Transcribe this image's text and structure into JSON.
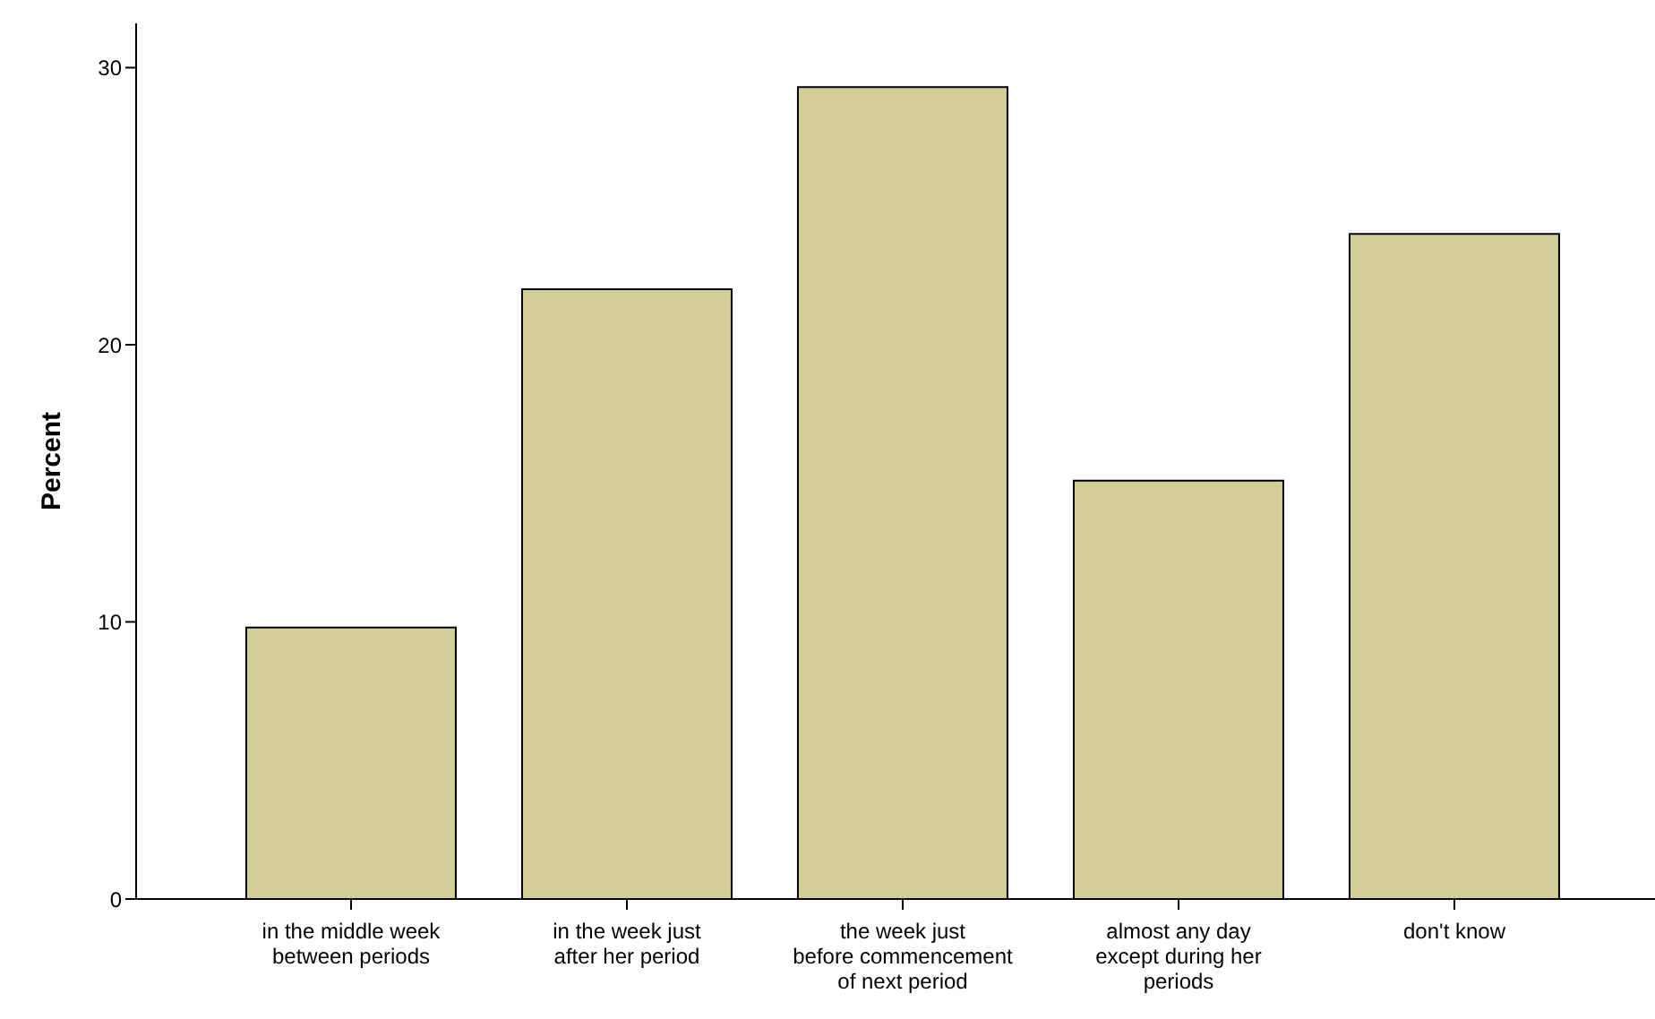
{
  "chart_data": {
    "type": "bar",
    "ylabel": "Percent",
    "categories": [
      "in the middle week between periods",
      "in the week just after her period",
      "the week just before commencement of next period",
      "almost any day except during her periods",
      "don't know"
    ],
    "values": [
      9.8,
      22.0,
      29.3,
      15.1,
      24.0
    ],
    "color": "#d3ce97",
    "ylim": [
      0,
      31.6
    ],
    "yticks": [
      0,
      10,
      20,
      30
    ]
  }
}
